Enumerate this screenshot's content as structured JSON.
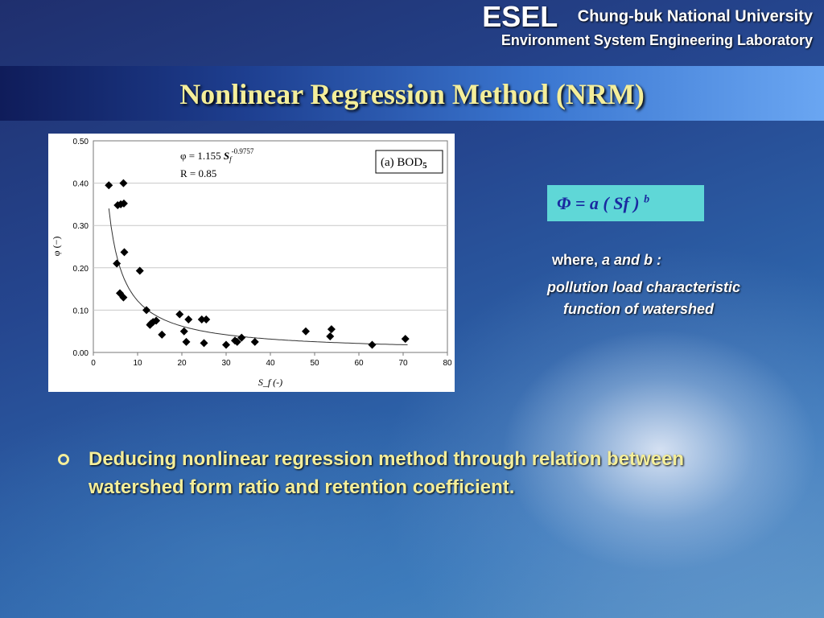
{
  "header": {
    "acronym": "ESEL",
    "university": "Chung-buk National University",
    "lab": "Environment System Engineering Laboratory"
  },
  "slide": {
    "title": "Nonlinear Regression Method (NRM)",
    "formula_main": "Φ = a ( Sf ) ",
    "formula_exp": "b",
    "where_prefix": "where, ",
    "where_vars": "a and b :",
    "desc_line1": "pollution load characteristic",
    "desc_line2": "function of watershed",
    "bullet": "Deducing nonlinear regression method through relation between watershed form ratio and retention coefficient."
  },
  "chart_data": {
    "type": "scatter",
    "xlabel": "S_f (-)",
    "ylabel": "φ (−)",
    "xlim": [
      0,
      80
    ],
    "ylim": [
      0,
      0.5
    ],
    "xticks": [
      "0",
      "10",
      "20",
      "30",
      "40",
      "50",
      "60",
      "70",
      "80"
    ],
    "yticks": [
      "0.00",
      "0.10",
      "0.20",
      "0.30",
      "0.40",
      "0.50"
    ],
    "equation_prefix": "φ = 1.155 ",
    "equation_var": "S",
    "equation_sub": "f",
    "equation_exp": "-0.9757",
    "r_value": "R = 0.85",
    "panel_label": "(a) BOD",
    "panel_sub": "5",
    "fit": {
      "a": 1.155,
      "b": -0.9757
    },
    "grid": true,
    "points": [
      [
        3.5,
        0.395
      ],
      [
        5.5,
        0.348
      ],
      [
        6.2,
        0.35
      ],
      [
        6.8,
        0.4
      ],
      [
        6.9,
        0.352
      ],
      [
        5.3,
        0.21
      ],
      [
        7.0,
        0.237
      ],
      [
        10.5,
        0.193
      ],
      [
        6.0,
        0.14
      ],
      [
        6.8,
        0.13
      ],
      [
        12.0,
        0.1
      ],
      [
        13.0,
        0.068
      ],
      [
        13.5,
        0.072
      ],
      [
        14.2,
        0.075
      ],
      [
        12.8,
        0.065
      ],
      [
        15.5,
        0.042
      ],
      [
        19.5,
        0.09
      ],
      [
        20.5,
        0.05
      ],
      [
        21.0,
        0.025
      ],
      [
        21.5,
        0.078
      ],
      [
        24.5,
        0.078
      ],
      [
        25.5,
        0.078
      ],
      [
        25.0,
        0.022
      ],
      [
        30.0,
        0.018
      ],
      [
        32.0,
        0.028
      ],
      [
        32.5,
        0.025
      ],
      [
        33.5,
        0.035
      ],
      [
        36.5,
        0.025
      ],
      [
        48.0,
        0.05
      ],
      [
        53.5,
        0.038
      ],
      [
        53.8,
        0.055
      ],
      [
        63.0,
        0.018
      ],
      [
        70.5,
        0.032
      ]
    ]
  }
}
